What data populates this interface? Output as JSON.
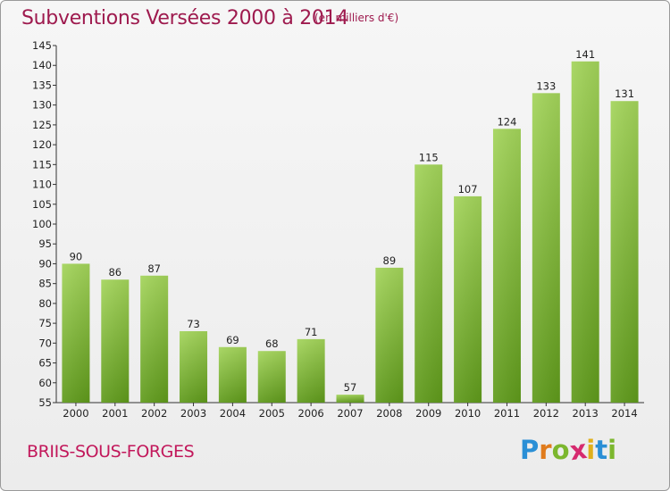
{
  "chart_data": {
    "type": "bar",
    "title": "Subventions Versées 2000 à 2014",
    "subtitle": "(en milliers d'€)",
    "categories": [
      "2000",
      "2001",
      "2002",
      "2003",
      "2004",
      "2005",
      "2006",
      "2007",
      "2008",
      "2009",
      "2010",
      "2011",
      "2012",
      "2013",
      "2014"
    ],
    "values": [
      90,
      86,
      87,
      73,
      69,
      68,
      71,
      57,
      89,
      115,
      107,
      124,
      133,
      141,
      131
    ],
    "ylim": [
      55,
      145
    ],
    "yticks": [
      55,
      60,
      65,
      70,
      75,
      80,
      85,
      90,
      95,
      100,
      105,
      110,
      115,
      120,
      125,
      130,
      135,
      140,
      145
    ],
    "xlabel": "",
    "ylabel": "",
    "grid": false,
    "legend": "none"
  },
  "commune": "BRIIS-SOUS-FORGES",
  "logo": {
    "text": "Proxiti",
    "letters": [
      "P",
      "r",
      "o",
      "x",
      "i",
      "t",
      "i"
    ],
    "colors": [
      "#2a8fd6",
      "#e07b1c",
      "#7cb72e",
      "#d62a6f",
      "#e0b01c",
      "#2a8fd6",
      "#7cb72e"
    ]
  },
  "colors": {
    "title": "#9e1a4e",
    "commune": "#c2185b",
    "bar_light": "#a3d45a",
    "bar_dark": "#5f9a1b",
    "axis": "#333333"
  }
}
